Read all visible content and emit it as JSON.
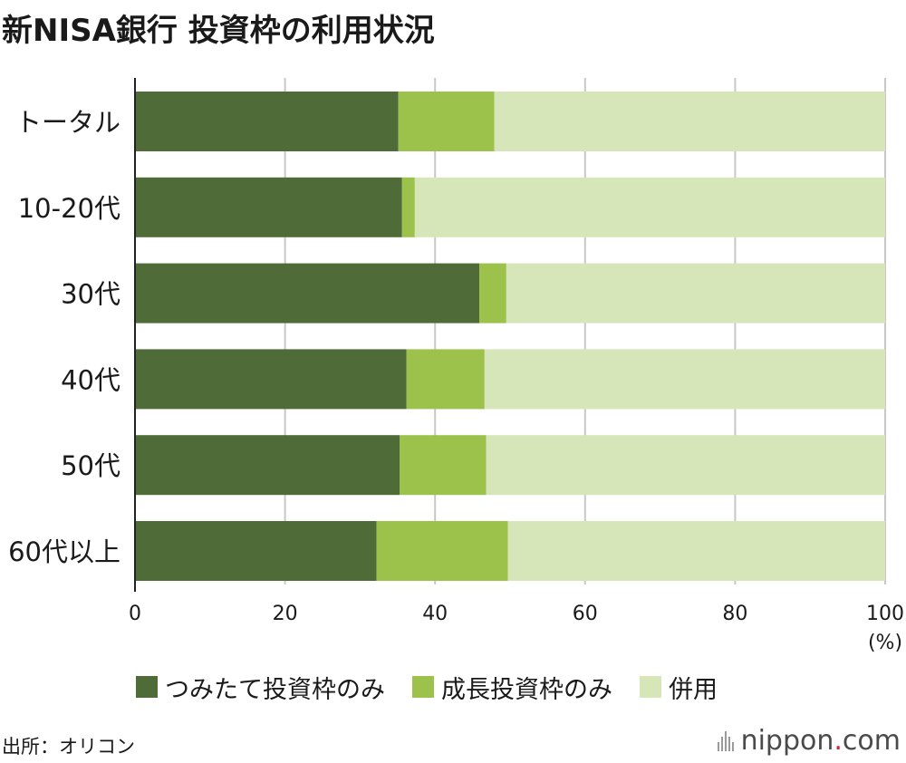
{
  "title": "新NISA銀行 投資枠の利用状況",
  "source": "出所：オリコン",
  "logo": {
    "name": "nippon",
    "dot": ".",
    "suffix": "com",
    "accent": "#d9232e"
  },
  "colors": {
    "tsumitate": "#4f6b37",
    "seicho": "#9cc24b",
    "heiyo": "#d6e6b8",
    "grid": "#c8c8c8",
    "axis": "#222222"
  },
  "chart_data": {
    "type": "bar",
    "orientation": "horizontal",
    "stacked": true,
    "title": "新NISA銀行 投資枠の利用状況",
    "categories": [
      "トータル",
      "10-20代",
      "30代",
      "40代",
      "50代",
      "60代以上"
    ],
    "series": [
      {
        "name": "つみたて投資枠のみ",
        "values": [
          35.1,
          35.6,
          45.9,
          36.2,
          35.3,
          32.2
        ]
      },
      {
        "name": "成長投資枠のみ",
        "values": [
          12.8,
          1.7,
          3.6,
          10.4,
          11.5,
          17.5
        ]
      },
      {
        "name": "併用",
        "values": [
          52.1,
          62.7,
          50.5,
          53.4,
          53.2,
          50.3
        ]
      }
    ],
    "xlim": [
      0,
      100
    ],
    "xticks": [
      0,
      20,
      40,
      60,
      80,
      100
    ],
    "xunit": "(%)",
    "grid": true,
    "legend": "bottom"
  }
}
